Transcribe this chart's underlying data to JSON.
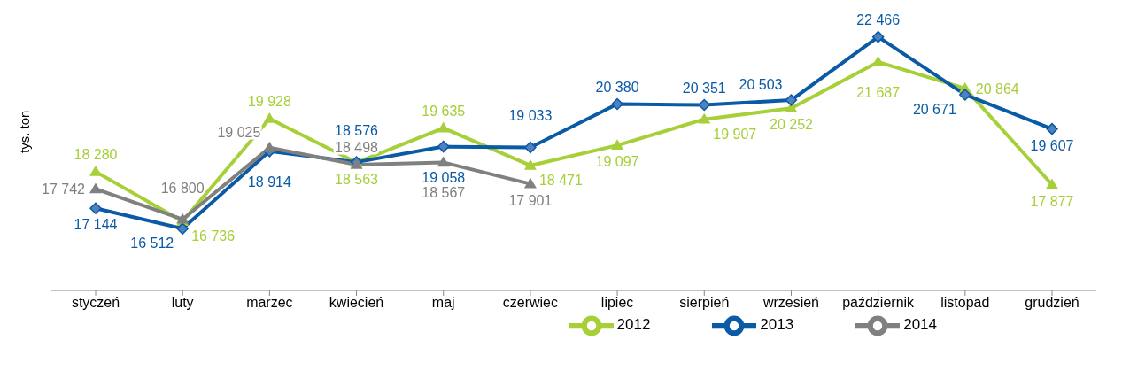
{
  "chart_data": {
    "type": "line",
    "ylabel": "tys. ton",
    "categories": [
      "styczeń",
      "luty",
      "marzec",
      "kwiecień",
      "maj",
      "czerwiec",
      "lipiec",
      "sierpień",
      "wrzesień",
      "październik",
      "listopad",
      "grudzień"
    ],
    "series": [
      {
        "name": "2012",
        "color": "#a6cf38",
        "marker": "triangle",
        "values": [
          18280,
          16736,
          19928,
          18563,
          19635,
          18471,
          19097,
          19907,
          20252,
          21687,
          20864,
          17877
        ]
      },
      {
        "name": "2013",
        "color": "#0a5aa5",
        "marker": "diamond",
        "values": [
          17144,
          16512,
          18914,
          18576,
          19058,
          19033,
          20380,
          20351,
          20503,
          22466,
          20671,
          19607
        ]
      },
      {
        "name": "2014",
        "color": "#808080",
        "marker": "triangle",
        "values": [
          17742,
          16800,
          19025,
          18498,
          18567,
          17901,
          null,
          null,
          null,
          null,
          null,
          null
        ]
      }
    ],
    "data_labels": true,
    "grid": false,
    "legend": "bottom right",
    "tick_labels": "x"
  }
}
